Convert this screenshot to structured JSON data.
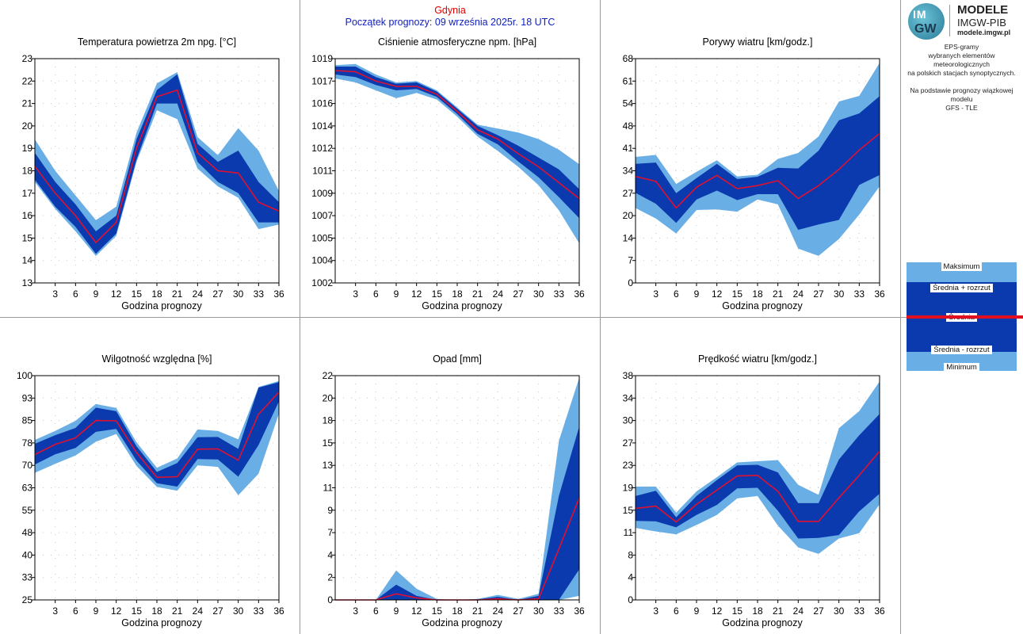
{
  "header": {
    "location": "Gdynia",
    "forecast_start": "Początek prognozy: 09 września 2025r. 18 UTC"
  },
  "logo": {
    "mark_top": "IM",
    "mark_bottom": "GW",
    "title": "MODELE",
    "subtitle": "IMGW-PIB",
    "url": "modele.imgw.pl"
  },
  "description": [
    "EPS-gramy",
    "wybranych elementów meteorologicznych",
    "na polskich stacjach  synoptycznych.",
    "",
    "Na podstawie prognozy wiązkowej modelu",
    "GFS - TLE"
  ],
  "legend": {
    "max_label": "Maksimum",
    "mean_plus_label": "Średnia + rozrzut",
    "mean_label": "Średnia",
    "mean_minus_label": "Średnia - rozrzut",
    "min_label": "Minimum"
  },
  "colors": {
    "minmax_band": "#6aaee6",
    "spread_band": "#0a3aae",
    "mean_line": "#e01030"
  },
  "chart_data": [
    {
      "type": "area",
      "title": "Temperatura powietrza 2m npg. [°C]",
      "xlabel": "Godzina prognozy",
      "x": [
        0,
        3,
        6,
        9,
        12,
        15,
        18,
        21,
        24,
        27,
        30,
        33,
        36
      ],
      "xticks": [
        3,
        6,
        9,
        12,
        15,
        18,
        21,
        24,
        27,
        30,
        33,
        36
      ],
      "ylim": [
        13,
        23
      ],
      "yticks": [
        "13",
        "14",
        "15",
        "16",
        "17",
        "18",
        "19",
        "20",
        "21",
        "22",
        "23"
      ],
      "max": [
        19.4,
        18.0,
        16.9,
        15.8,
        16.4,
        19.7,
        21.9,
        22.4,
        19.5,
        18.7,
        19.9,
        18.9,
        17.1
      ],
      "mean_plus": [
        18.8,
        17.5,
        16.5,
        15.3,
        16.0,
        19.4,
        21.6,
        22.3,
        19.2,
        18.4,
        18.9,
        17.5,
        16.6
      ],
      "mean": [
        18.2,
        17.0,
        16.0,
        14.8,
        15.7,
        19.0,
        21.3,
        21.6,
        18.8,
        18.0,
        17.9,
        16.6,
        16.2
      ],
      "mean_minus": [
        17.6,
        16.4,
        15.5,
        14.3,
        15.2,
        18.5,
        21.0,
        21.0,
        18.4,
        17.5,
        17.0,
        15.7,
        15.7
      ],
      "min": [
        17.5,
        16.3,
        15.3,
        14.2,
        15.1,
        18.4,
        20.7,
        20.3,
        18.1,
        17.3,
        16.8,
        15.4,
        15.6
      ]
    },
    {
      "type": "area",
      "title": "Ciśnienie atmosferyczne npm. [hPa]",
      "xlabel": "Godzina prognozy",
      "x": [
        0,
        3,
        6,
        9,
        12,
        15,
        18,
        21,
        24,
        27,
        30,
        33,
        36
      ],
      "xticks": [
        3,
        6,
        9,
        12,
        15,
        18,
        21,
        24,
        27,
        30,
        33,
        36
      ],
      "ylim": [
        1002,
        1019
      ],
      "yticks": [
        "1002",
        "1004",
        "1005",
        "1007",
        "1009",
        "1011",
        "1012",
        "1014",
        "1016",
        "1017",
        "1019"
      ],
      "max": [
        1018.5,
        1018.6,
        1017.8,
        1017.2,
        1017.3,
        1016.6,
        1015.3,
        1014.0,
        1013.7,
        1013.4,
        1012.9,
        1012.1,
        1011.0
      ],
      "mean_plus": [
        1018.4,
        1018.4,
        1017.6,
        1017.1,
        1017.2,
        1016.5,
        1015.2,
        1013.9,
        1013.2,
        1012.4,
        1011.5,
        1010.6,
        1009.1
      ],
      "mean": [
        1018.1,
        1018.0,
        1017.3,
        1016.9,
        1016.9,
        1016.3,
        1015.0,
        1013.6,
        1012.9,
        1011.8,
        1010.8,
        1009.6,
        1008.4
      ],
      "mean_minus": [
        1017.8,
        1017.6,
        1017.0,
        1016.6,
        1016.7,
        1016.1,
        1014.8,
        1013.3,
        1012.5,
        1011.2,
        1010.0,
        1008.5,
        1006.9
      ],
      "min": [
        1017.5,
        1017.2,
        1016.6,
        1016.0,
        1016.4,
        1015.9,
        1014.6,
        1013.1,
        1012.0,
        1010.8,
        1009.4,
        1007.5,
        1005.0
      ]
    },
    {
      "type": "area",
      "title": "Porywy wiatru [km/godz.]",
      "xlabel": "Godzina prognozy",
      "x": [
        0,
        3,
        6,
        9,
        12,
        15,
        18,
        21,
        24,
        27,
        30,
        33,
        36
      ],
      "xticks": [
        3,
        6,
        9,
        12,
        15,
        18,
        21,
        24,
        27,
        30,
        33,
        36
      ],
      "ylim": [
        0,
        68
      ],
      "yticks": [
        "0",
        "7",
        "14",
        "20",
        "27",
        "34",
        "41",
        "48",
        "54",
        "61",
        "68"
      ],
      "max": [
        38.2,
        38.8,
        30.0,
        33.7,
        37.2,
        32.3,
        32.8,
        37.6,
        39.4,
        44.4,
        55.0,
        56.7,
        66.7
      ],
      "mean_plus": [
        36.1,
        36.5,
        27.2,
        31.8,
        36.1,
        31.5,
        32.2,
        34.9,
        34.7,
        40.1,
        49.3,
        51.4,
        56.6
      ],
      "mean": [
        32.3,
        30.8,
        22.7,
        29.0,
        32.6,
        28.6,
        29.5,
        31.0,
        25.6,
        29.5,
        34.4,
        40.3,
        45.3
      ],
      "mean_minus": [
        27.3,
        24.0,
        18.2,
        25.3,
        28.0,
        25.1,
        26.9,
        26.9,
        16.1,
        17.7,
        19.1,
        29.7,
        32.7
      ],
      "min": [
        22.7,
        19.5,
        15.0,
        22.1,
        22.3,
        21.6,
        25.3,
        23.8,
        10.4,
        8.2,
        13.3,
        20.7,
        29.3
      ]
    },
    {
      "type": "area",
      "title": "Wilgotność względna [%]",
      "xlabel": "Godzina prognozy",
      "x": [
        0,
        3,
        6,
        9,
        12,
        15,
        18,
        21,
        24,
        27,
        30,
        33,
        36
      ],
      "xticks": [
        3,
        6,
        9,
        12,
        15,
        18,
        21,
        24,
        27,
        30,
        33,
        36
      ],
      "ylim": [
        25,
        100
      ],
      "yticks": [
        "25",
        "33",
        "40",
        "48",
        "55",
        "63",
        "70",
        "78",
        "85",
        "93",
        "100"
      ],
      "max": [
        78.5,
        81.5,
        84.9,
        90.5,
        89.2,
        77.7,
        69.2,
        72.3,
        82.0,
        81.5,
        78.7,
        96.2,
        98.2
      ],
      "mean_plus": [
        77.2,
        80.1,
        82.5,
        89.3,
        88.1,
        76.4,
        67.8,
        70.8,
        79.4,
        79.5,
        75.5,
        96.0,
        97.8
      ],
      "mean": [
        73.6,
        77.0,
        79.2,
        85.0,
        84.9,
        74.3,
        66.0,
        66.2,
        75.4,
        75.5,
        71.7,
        87.1,
        94.5
      ],
      "mean_minus": [
        70.3,
        73.7,
        75.8,
        81.2,
        82.2,
        71.6,
        64.0,
        62.9,
        72.1,
        72.0,
        66.2,
        76.8,
        91.4
      ],
      "min": [
        67.5,
        70.5,
        73.3,
        77.9,
        80.5,
        69.8,
        62.8,
        61.5,
        70.0,
        69.5,
        60.0,
        67.2,
        87.3
      ]
    },
    {
      "type": "area",
      "title": "Opad [mm]",
      "xlabel": "Godzina prognozy",
      "x": [
        0,
        3,
        6,
        9,
        12,
        15,
        18,
        21,
        24,
        27,
        30,
        33,
        36
      ],
      "xticks": [
        3,
        6,
        9,
        12,
        15,
        18,
        21,
        24,
        27,
        30,
        33,
        36
      ],
      "ylim": [
        0,
        22
      ],
      "yticks": [
        "0",
        "2",
        "4",
        "7",
        "9",
        "11",
        "13",
        "15",
        "18",
        "20",
        "22"
      ],
      "max": [
        0,
        0,
        0,
        2.9,
        1.1,
        0.1,
        0,
        0.1,
        0.5,
        0.1,
        0.6,
        15.6,
        21.8
      ],
      "mean_plus": [
        0,
        0,
        0,
        1.5,
        0.4,
        0,
        0,
        0.05,
        0.3,
        0,
        0.4,
        10.2,
        17.0
      ],
      "mean": [
        0,
        0,
        0,
        0.6,
        0.2,
        0,
        0,
        0,
        0.1,
        0,
        0.1,
        5.0,
        10.0
      ],
      "mean_minus": [
        0,
        0,
        0,
        0,
        0,
        0,
        0,
        0,
        0,
        0,
        0,
        0,
        3.0
      ],
      "min": [
        0,
        0,
        0,
        0,
        0,
        0,
        0,
        0,
        0,
        0,
        0,
        0,
        0.4
      ]
    },
    {
      "type": "area",
      "title": "Prędkość wiatru [km/godz.]",
      "xlabel": "Godzina prognozy",
      "x": [
        0,
        3,
        6,
        9,
        12,
        15,
        18,
        21,
        24,
        27,
        30,
        33,
        36
      ],
      "xticks": [
        3,
        6,
        9,
        12,
        15,
        18,
        21,
        24,
        27,
        30,
        33,
        36
      ],
      "ylim": [
        0,
        38
      ],
      "yticks": [
        "0",
        "4",
        "8",
        "11",
        "15",
        "19",
        "23",
        "27",
        "30",
        "34",
        "38"
      ],
      "max": [
        19.2,
        19.2,
        14.8,
        18.4,
        20.8,
        23.3,
        23.5,
        23.7,
        19.5,
        17.8,
        29.1,
        32.0,
        37.0
      ],
      "mean_plus": [
        17.6,
        18.5,
        14.0,
        17.6,
        20.3,
        22.8,
        22.9,
        21.6,
        16.4,
        16.4,
        23.8,
        27.9,
        31.5
      ],
      "mean": [
        15.5,
        15.9,
        13.2,
        16.2,
        18.6,
        21.0,
        21.1,
        18.4,
        13.3,
        13.3,
        17.3,
        21.1,
        25.2
      ],
      "mean_minus": [
        13.4,
        13.3,
        12.3,
        14.4,
        16.1,
        18.9,
        19.0,
        15.1,
        10.4,
        10.5,
        11.0,
        15.0,
        18.0
      ],
      "min": [
        12.2,
        11.6,
        11.1,
        12.7,
        14.4,
        17.2,
        17.6,
        12.6,
        8.9,
        7.8,
        10.4,
        11.3,
        16.2
      ]
    }
  ]
}
